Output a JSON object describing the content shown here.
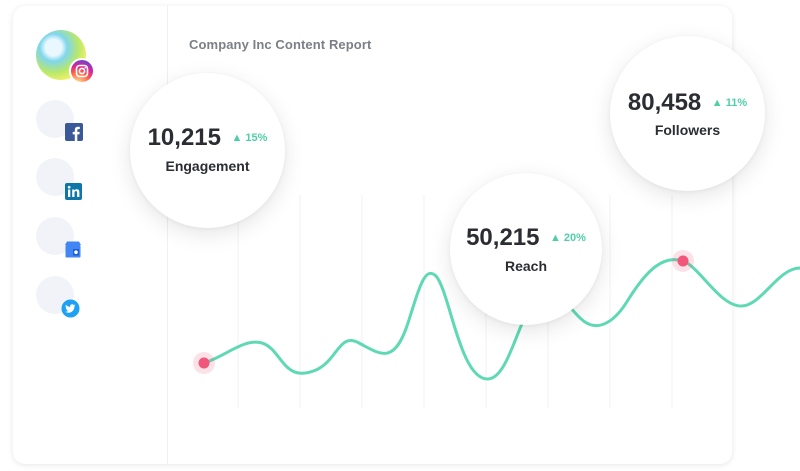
{
  "report": {
    "title": "Company Inc Content Report"
  },
  "sidebar": {
    "profile": {
      "avatar_icon": "profile-avatar",
      "badge_icon": "instagram-icon"
    },
    "networks": [
      {
        "icon": "facebook-icon",
        "color": "#3b5998"
      },
      {
        "icon": "linkedin-icon",
        "color": "#0e76a8"
      },
      {
        "icon": "google-my-business-icon",
        "color": "#4285f4"
      },
      {
        "icon": "twitter-icon",
        "color": "#1da1f2"
      }
    ]
  },
  "stats": {
    "engagement": {
      "value": "10,215",
      "change": "15%",
      "label": "Engagement"
    },
    "reach": {
      "value": "50,215",
      "change": "20%",
      "label": "Reach"
    },
    "followers": {
      "value": "80,458",
      "change": "11%",
      "label": "Followers"
    }
  },
  "colors": {
    "line": "#5fd9b4",
    "highlight_point": "#f0577a",
    "positive_change": "#4fcfa8"
  }
}
